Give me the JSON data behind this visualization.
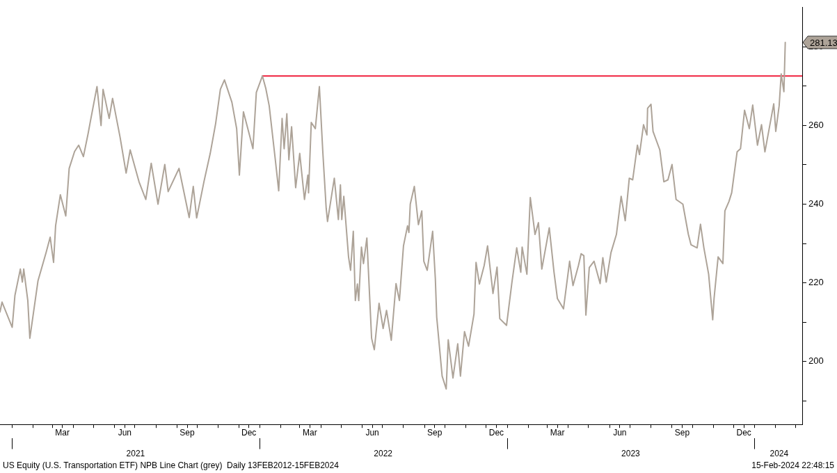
{
  "chart_data": {
    "type": "line",
    "series": [
      {
        "color": "#ada398",
        "x": [
          "2020-12-14",
          "2020-12-17",
          "2021-01-01",
          "2021-01-05",
          "2021-01-13",
          "2021-01-16",
          "2021-01-18",
          "2021-01-24",
          "2021-01-27",
          "2021-02-08",
          "2021-02-20",
          "2021-02-26",
          "2021-03-03",
          "2021-03-06",
          "2021-03-13",
          "2021-03-21",
          "2021-03-26",
          "2021-04-03",
          "2021-04-09",
          "2021-04-16",
          "2021-04-23",
          "2021-04-26",
          "2021-05-06",
          "2021-05-12",
          "2021-05-15",
          "2021-05-24",
          "2021-05-29",
          "2021-06-09",
          "2021-06-18",
          "2021-06-24",
          "2021-07-07",
          "2021-07-17",
          "2021-07-25",
          "2021-08-04",
          "2021-08-14",
          "2021-08-19",
          "2021-09-04",
          "2021-09-19",
          "2021-09-25",
          "2021-09-30",
          "2021-10-11",
          "2021-10-20",
          "2021-10-28",
          "2021-11-04",
          "2021-11-10",
          "2021-11-21",
          "2021-11-28",
          "2021-12-02",
          "2021-12-08",
          "2021-12-17",
          "2021-12-22",
          "2021-12-27",
          "2022-01-05",
          "2022-01-10",
          "2022-01-15",
          "2022-01-24",
          "2022-01-29",
          "2022-02-03",
          "2022-02-06",
          "2022-02-10",
          "2022-02-13",
          "2022-02-17",
          "2022-02-23",
          "2022-03-01",
          "2022-03-08",
          "2022-03-13",
          "2022-03-14",
          "2022-03-18",
          "2022-03-24",
          "2022-03-30",
          "2022-04-04",
          "2022-04-09",
          "2022-04-11",
          "2022-04-21",
          "2022-04-27",
          "2022-04-30",
          "2022-05-02",
          "2022-05-05",
          "2022-05-12",
          "2022-05-15",
          "2022-05-19",
          "2022-05-22",
          "2022-05-25",
          "2022-05-27",
          "2022-05-31",
          "2022-06-03",
          "2022-06-08",
          "2022-06-15",
          "2022-06-19",
          "2022-06-26",
          "2022-07-02",
          "2022-07-07",
          "2022-07-14",
          "2022-07-21",
          "2022-07-26",
          "2022-08-01",
          "2022-08-07",
          "2022-08-09",
          "2022-08-11",
          "2022-08-17",
          "2022-08-23",
          "2022-08-28",
          "2022-08-31",
          "2022-09-05",
          "2022-09-13",
          "2022-09-17",
          "2022-09-19",
          "2022-09-27",
          "2022-10-03",
          "2022-10-06",
          "2022-10-13",
          "2022-10-20",
          "2022-10-24",
          "2022-10-30",
          "2022-11-05",
          "2022-11-13",
          "2022-11-16",
          "2022-11-21",
          "2022-11-28",
          "2022-12-03",
          "2022-12-11",
          "2022-12-17",
          "2022-12-21",
          "2022-12-31",
          "2023-01-08",
          "2023-01-15",
          "2023-01-21",
          "2023-01-23",
          "2023-01-30",
          "2023-02-04",
          "2023-02-11",
          "2023-02-16",
          "2023-02-21",
          "2023-03-04",
          "2023-03-11",
          "2023-03-16",
          "2023-03-25",
          "2023-04-03",
          "2023-04-08",
          "2023-04-16",
          "2023-04-20",
          "2023-04-24",
          "2023-04-27",
          "2023-05-02",
          "2023-05-09",
          "2023-05-18",
          "2023-05-22",
          "2023-05-27",
          "2023-06-03",
          "2023-06-11",
          "2023-06-18",
          "2023-06-24",
          "2023-06-30",
          "2023-07-05",
          "2023-07-12",
          "2023-07-15",
          "2023-07-21",
          "2023-07-26",
          "2023-07-27",
          "2023-08-01",
          "2023-08-04",
          "2023-08-14",
          "2023-08-20",
          "2023-08-26",
          "2023-09-01",
          "2023-09-07",
          "2023-09-17",
          "2023-09-25",
          "2023-09-29",
          "2023-10-08",
          "2023-10-13",
          "2023-10-18",
          "2023-10-25",
          "2023-10-31",
          "2023-11-02",
          "2023-11-08",
          "2023-11-15",
          "2023-11-18",
          "2023-11-24",
          "2023-11-28",
          "2023-12-06",
          "2023-12-11",
          "2023-12-17",
          "2023-12-24",
          "2023-12-29",
          "2024-01-05",
          "2024-01-11",
          "2024-01-16",
          "2024-01-29",
          "2024-02-01",
          "2024-02-06",
          "2024-02-09",
          "2024-02-13",
          "2024-02-15"
        ],
        "values": [
          212.6,
          215.1,
          208.7,
          216.8,
          223.5,
          220.2,
          223.5,
          215.5,
          205.9,
          220.5,
          227.7,
          231.6,
          225.2,
          234.5,
          242.4,
          237.0,
          249.1,
          253.4,
          255.0,
          252.1,
          258.0,
          260.8,
          269.9,
          260.0,
          269.2,
          261.8,
          266.9,
          257.1,
          247.9,
          253.8,
          245.7,
          241.2,
          250.4,
          240.0,
          250.1,
          243.2,
          249.1,
          236.6,
          244.5,
          236.5,
          245.9,
          252.9,
          260.5,
          269.2,
          271.6,
          265.9,
          259.2,
          247.4,
          263.5,
          257.5,
          254.1,
          268.4,
          272.6,
          269.4,
          265.0,
          251.3,
          243.4,
          261.8,
          254.1,
          263.0,
          251.3,
          259.7,
          244.2,
          252.9,
          241.2,
          247.4,
          242.9,
          260.8,
          259.2,
          269.9,
          253.4,
          239.0,
          235.6,
          246.6,
          236.1,
          244.9,
          236.1,
          242.0,
          226.6,
          223.2,
          233.1,
          215.5,
          219.7,
          215.5,
          229.1,
          224.9,
          231.4,
          205.9,
          203.0,
          214.8,
          208.4,
          213.0,
          205.4,
          219.8,
          215.5,
          229.4,
          234.5,
          232.8,
          240.0,
          244.5,
          234.8,
          238.3,
          225.5,
          223.2,
          233.1,
          221.0,
          211.3,
          196.3,
          193.0,
          205.5,
          195.8,
          204.5,
          196.3,
          207.6,
          203.9,
          212.1,
          225.2,
          219.7,
          224.4,
          229.4,
          217.3,
          224.0,
          210.9,
          209.2,
          220.2,
          228.9,
          222.7,
          229.1,
          222.2,
          241.7,
          232.3,
          235.3,
          223.5,
          234.0,
          222.7,
          216.0,
          213.4,
          225.5,
          219.3,
          224.4,
          227.4,
          226.9,
          211.8,
          223.9,
          225.5,
          219.8,
          226.4,
          220.2,
          227.7,
          232.3,
          242.0,
          235.8,
          246.6,
          246.2,
          255.0,
          252.6,
          260.2,
          257.6,
          264.4,
          265.4,
          258.5,
          253.8,
          245.7,
          246.2,
          250.1,
          241.2,
          240.0,
          232.4,
          229.7,
          228.9,
          234.9,
          228.9,
          222.2,
          210.6,
          216.0,
          226.6,
          224.9,
          238.3,
          240.7,
          242.9,
          253.3,
          254.1,
          263.9,
          259.2,
          265.2,
          255.0,
          260.2,
          253.3,
          265.5,
          258.5,
          265.0,
          273.1,
          268.6,
          281.13
        ]
      },
      {
        "color": "#f0203c",
        "x": [
          "2022-01-05",
          "2024-03-11"
        ],
        "values": [
          272.6,
          272.6
        ]
      }
    ],
    "xlim": [
      "2020-12-14",
      "2024-03-11"
    ],
    "xticks": [
      {
        "value": "2021-01-01",
        "label": null
      },
      {
        "value": "2021-02-01",
        "label": null
      },
      {
        "value": "2021-03-01",
        "label": null
      },
      {
        "value": "2021-03-16",
        "label": "Mar"
      },
      {
        "value": "2021-04-01",
        "label": null
      },
      {
        "value": "2021-05-01",
        "label": null
      },
      {
        "value": "2021-06-01",
        "label": null
      },
      {
        "value": "2021-06-16",
        "label": "Jun"
      },
      {
        "value": "2021-07-01",
        "label": null
      },
      {
        "value": "2021-08-01",
        "label": null
      },
      {
        "value": "2021-09-01",
        "label": null
      },
      {
        "value": "2021-09-16",
        "label": "Sep"
      },
      {
        "value": "2021-10-01",
        "label": null
      },
      {
        "value": "2021-11-01",
        "label": null
      },
      {
        "value": "2021-12-01",
        "label": null
      },
      {
        "value": "2021-12-16",
        "label": "Dec"
      },
      {
        "value": "2022-01-01",
        "label": null
      },
      {
        "value": "2022-02-01",
        "label": null
      },
      {
        "value": "2022-03-01",
        "label": null
      },
      {
        "value": "2022-03-16",
        "label": "Mar"
      },
      {
        "value": "2022-04-01",
        "label": null
      },
      {
        "value": "2022-05-01",
        "label": null
      },
      {
        "value": "2022-06-01",
        "label": null
      },
      {
        "value": "2022-06-16",
        "label": "Jun"
      },
      {
        "value": "2022-07-01",
        "label": null
      },
      {
        "value": "2022-08-01",
        "label": null
      },
      {
        "value": "2022-09-01",
        "label": null
      },
      {
        "value": "2022-09-16",
        "label": "Sep"
      },
      {
        "value": "2022-10-01",
        "label": null
      },
      {
        "value": "2022-11-01",
        "label": null
      },
      {
        "value": "2022-12-01",
        "label": null
      },
      {
        "value": "2022-12-16",
        "label": "Dec"
      },
      {
        "value": "2023-01-01",
        "label": null
      },
      {
        "value": "2023-02-01",
        "label": null
      },
      {
        "value": "2023-03-01",
        "label": null
      },
      {
        "value": "2023-03-16",
        "label": "Mar"
      },
      {
        "value": "2023-04-01",
        "label": null
      },
      {
        "value": "2023-05-01",
        "label": null
      },
      {
        "value": "2023-06-01",
        "label": null
      },
      {
        "value": "2023-06-16",
        "label": "Jun"
      },
      {
        "value": "2023-07-01",
        "label": null
      },
      {
        "value": "2023-08-01",
        "label": null
      },
      {
        "value": "2023-09-01",
        "label": null
      },
      {
        "value": "2023-09-16",
        "label": "Sep"
      },
      {
        "value": "2023-10-01",
        "label": null
      },
      {
        "value": "2023-11-01",
        "label": null
      },
      {
        "value": "2023-12-01",
        "label": null
      },
      {
        "value": "2023-12-16",
        "label": "Dec"
      },
      {
        "value": "2024-01-01",
        "label": null
      },
      {
        "value": "2024-02-01",
        "label": null
      },
      {
        "value": "2024-03-01",
        "label": null
      }
    ],
    "x2lim": [
      "2020-12-14",
      "2024-03-11"
    ],
    "x2ticks": [
      {
        "value": "2021-01-01",
        "label": null
      },
      {
        "value": "2021-07-02",
        "label": "2021"
      },
      {
        "value": "2022-01-01",
        "label": null
      },
      {
        "value": "2022-07-02",
        "label": "2022"
      },
      {
        "value": "2023-01-01",
        "label": null
      },
      {
        "value": "2023-07-02",
        "label": "2023"
      },
      {
        "value": "2024-01-01",
        "label": null
      },
      {
        "value": "2024-02-06",
        "label": "2024"
      }
    ],
    "ylim": [
      184,
      290
    ],
    "yticks": [
      {
        "value": 190,
        "label": null
      },
      200,
      {
        "value": 210,
        "label": null
      },
      220,
      {
        "value": 230,
        "label": null
      },
      240,
      {
        "value": 250,
        "label": null
      },
      260,
      {
        "value": 270,
        "label": null
      },
      280
    ],
    "annotations": [
      {
        "text": "281.13",
        "x": "2024-02-15",
        "y": 281.13
      },
      "US Equity (U.S. Transportation ETF) NPB Line Chart (grey)  Daily 13FEB2012-15FEB2024",
      "15-Feb-2024 22:48:15"
    ]
  }
}
